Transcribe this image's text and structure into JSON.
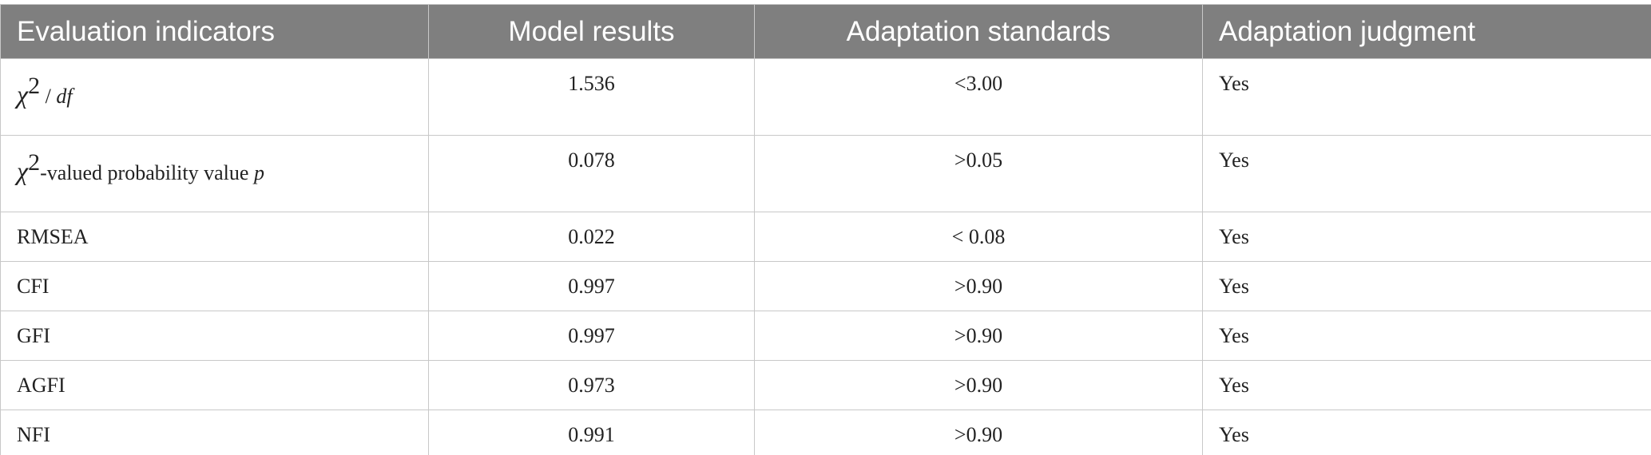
{
  "table": {
    "header": [
      "Evaluation indicators",
      "Model results",
      "Adaptation standards",
      "Adaptation judgment"
    ],
    "rows": [
      [
        [
          "χ",
          "2",
          " / ",
          "df"
        ],
        "1.536",
        "<3.00",
        "Yes"
      ],
      [
        [
          "χ",
          "2",
          "-valued probability value ",
          "p"
        ],
        "0.078",
        ">0.05",
        "Yes"
      ],
      [
        "RMSEA",
        "0.022",
        "< 0.08",
        "Yes"
      ],
      [
        "CFI",
        "0.997",
        ">0.90",
        "Yes"
      ],
      [
        "GFI",
        "0.997",
        ">0.90",
        "Yes"
      ],
      [
        "AGFI",
        "0.973",
        ">0.90",
        "Yes"
      ],
      [
        "NFI",
        "0.991",
        ">0.90",
        "Yes"
      ]
    ]
  }
}
